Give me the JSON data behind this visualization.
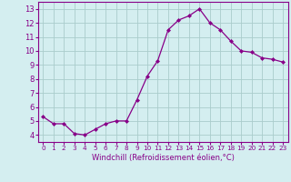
{
  "x": [
    0,
    1,
    2,
    3,
    4,
    5,
    6,
    7,
    8,
    9,
    10,
    11,
    12,
    13,
    14,
    15,
    16,
    17,
    18,
    19,
    20,
    21,
    22,
    23
  ],
  "y": [
    5.3,
    4.8,
    4.8,
    4.1,
    4.0,
    4.4,
    4.8,
    5.0,
    5.0,
    6.5,
    8.2,
    9.3,
    11.5,
    12.2,
    12.5,
    13.0,
    12.0,
    11.5,
    10.7,
    10.0,
    9.9,
    9.5,
    9.4,
    9.2
  ],
  "line_color": "#880088",
  "marker_color": "#880088",
  "bg_color": "#d4eef0",
  "grid_color": "#aacccc",
  "xlabel": "Windchill (Refroidissement éolien,°C)",
  "xlabel_color": "#880088",
  "tick_color": "#880088",
  "spine_color": "#880088",
  "ylim": [
    3.5,
    13.5
  ],
  "xlim": [
    -0.5,
    23.5
  ],
  "yticks": [
    4,
    5,
    6,
    7,
    8,
    9,
    10,
    11,
    12,
    13
  ],
  "xticks": [
    0,
    1,
    2,
    3,
    4,
    5,
    6,
    7,
    8,
    9,
    10,
    11,
    12,
    13,
    14,
    15,
    16,
    17,
    18,
    19,
    20,
    21,
    22,
    23
  ],
  "xlabel_fontsize": 6.0,
  "tick_fontsize_x": 5.2,
  "tick_fontsize_y": 6.0
}
